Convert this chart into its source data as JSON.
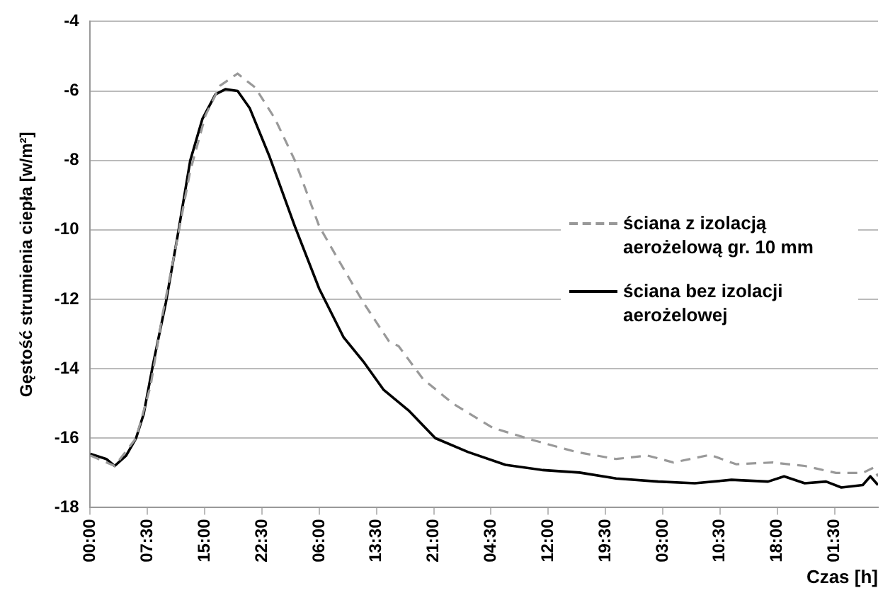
{
  "chart_data": {
    "type": "line",
    "xlabel": "Czas [h]",
    "ylabel": "Gęstość strumienia ciepła [w/m²]",
    "xlim": [
      "2000-01-01T00:00",
      "2000-01-05T07:12"
    ],
    "ylim": [
      -18,
      -4
    ],
    "yticks": [
      -18,
      -16,
      -14,
      -12,
      -10,
      -8,
      -6,
      -4
    ],
    "xticks": [
      {
        "value": "2000-01-01T00:00",
        "label": "00:00"
      },
      {
        "value": "2000-01-01T07:30",
        "label": "07:30"
      },
      {
        "value": "2000-01-01T15:00",
        "label": "15:00"
      },
      {
        "value": "2000-01-01T22:30",
        "label": "22:30"
      },
      {
        "value": "2000-01-02T06:00",
        "label": "06:00"
      },
      {
        "value": "2000-01-02T13:30",
        "label": "13:30"
      },
      {
        "value": "2000-01-02T21:00",
        "label": "21:00"
      },
      {
        "value": "2000-01-03T04:30",
        "label": "04:30"
      },
      {
        "value": "2000-01-03T12:00",
        "label": "12:00"
      },
      {
        "value": "2000-01-03T19:30",
        "label": "19:30"
      },
      {
        "value": "2000-01-04T03:00",
        "label": "03:00"
      },
      {
        "value": "2000-01-04T10:30",
        "label": "10:30"
      },
      {
        "value": "2000-01-04T18:00",
        "label": "18:00"
      },
      {
        "value": "2000-01-05T01:30",
        "label": "01:30"
      }
    ],
    "grid": "y",
    "legend": "right",
    "marker": "none",
    "series": [
      {
        "name": "ściana z izolacją aerożelową gr. 10 mm",
        "color": "#999999",
        "line_style": "dashed",
        "x": [
          "2000-01-01T00:00",
          "2000-01-01T03:12",
          "2000-01-01T06:00",
          "2000-01-01T07:54",
          "2000-01-01T09:30",
          "2000-01-01T11:12",
          "2000-01-01T13:06",
          "2000-01-01T15:06",
          "2000-01-01T17:00",
          "2000-01-01T19:18",
          "2000-01-01T21:36",
          "2000-01-02T00:12",
          "2000-01-02T02:48",
          "2000-01-02T06:00",
          "2000-01-02T08:36",
          "2000-01-02T11:48",
          "2000-01-02T15:06",
          "2000-01-02T16:24",
          "2000-01-02T19:36",
          "2000-01-02T23:30",
          "2000-01-03T04:42",
          "2000-01-03T09:54",
          "2000-01-03T15:42",
          "2000-01-03T20:54",
          "2000-01-04T01:00",
          "2000-01-04T04:24",
          "2000-01-04T09:12",
          "2000-01-04T12:36",
          "2000-01-04T17:24",
          "2000-01-04T21:36",
          "2000-01-05T01:42",
          "2000-01-05T05:12",
          "2000-01-05T06:36",
          "2000-01-05T07:12"
        ],
        "values": [
          -16.5,
          -16.8,
          -16.0,
          -14.5,
          -12.4,
          -10.5,
          -8.3,
          -6.7,
          -5.85,
          -5.5,
          -5.9,
          -6.8,
          -8.0,
          -9.9,
          -10.9,
          -12.1,
          -13.2,
          -13.35,
          -14.3,
          -15.0,
          -15.7,
          -16.05,
          -16.4,
          -16.6,
          -16.5,
          -16.7,
          -16.48,
          -16.75,
          -16.7,
          -16.8,
          -17.0,
          -17.0,
          -16.85,
          -17.1
        ]
      },
      {
        "name": "ściana bez izolacji aerożelowej",
        "color": "#000000",
        "line_style": "solid",
        "x": [
          "2000-01-01T00:00",
          "2000-01-01T02:06",
          "2000-01-01T03:12",
          "2000-01-01T04:42",
          "2000-01-01T06:00",
          "2000-01-01T07:00",
          "2000-01-01T08:12",
          "2000-01-01T09:54",
          "2000-01-01T11:30",
          "2000-01-01T13:06",
          "2000-01-01T14:42",
          "2000-01-01T16:24",
          "2000-01-01T17:42",
          "2000-01-01T19:18",
          "2000-01-01T20:54",
          "2000-01-01T23:30",
          "2000-01-02T02:48",
          "2000-01-02T06:00",
          "2000-01-02T09:12",
          "2000-01-02T11:48",
          "2000-01-02T14:24",
          "2000-01-02T17:42",
          "2000-01-02T21:12",
          "2000-01-03T01:30",
          "2000-01-03T06:24",
          "2000-01-03T11:18",
          "2000-01-03T16:06",
          "2000-01-03T20:54",
          "2000-01-04T02:24",
          "2000-01-04T07:12",
          "2000-01-04T12:00",
          "2000-01-04T16:48",
          "2000-01-04T18:54",
          "2000-01-04T21:36",
          "2000-01-05T00:24",
          "2000-01-05T02:24",
          "2000-01-05T05:12",
          "2000-01-05T06:12",
          "2000-01-05T07:12"
        ],
        "values": [
          -16.45,
          -16.6,
          -16.8,
          -16.5,
          -16.0,
          -15.3,
          -13.9,
          -12.1,
          -10.1,
          -8.0,
          -6.8,
          -6.1,
          -5.95,
          -6.0,
          -6.5,
          -7.9,
          -9.9,
          -11.7,
          -13.1,
          -13.8,
          -14.6,
          -15.2,
          -16.0,
          -16.4,
          -16.77,
          -16.92,
          -16.99,
          -17.16,
          -17.25,
          -17.3,
          -17.2,
          -17.25,
          -17.1,
          -17.3,
          -17.25,
          -17.42,
          -17.35,
          -17.1,
          -17.35
        ]
      }
    ]
  }
}
